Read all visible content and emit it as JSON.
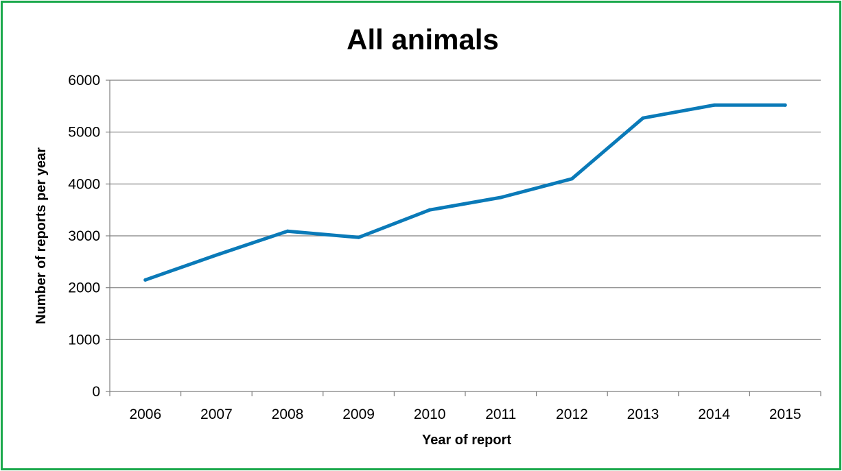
{
  "colors": {
    "border": "#1aa84b",
    "line": "#0a7ab8",
    "gridline": "#7f7f7f",
    "axis": "#7f7f7f"
  },
  "chart_data": {
    "type": "line",
    "title": "All animals",
    "xlabel": "Year of report",
    "ylabel": "Number of reports per year",
    "categories": [
      "2006",
      "2007",
      "2008",
      "2009",
      "2010",
      "2011",
      "2012",
      "2013",
      "2014",
      "2015"
    ],
    "series": [
      {
        "values": [
          2150,
          2630,
          3090,
          2970,
          3500,
          3740,
          4100,
          5270,
          5520,
          5520
        ]
      }
    ],
    "ylim": [
      0,
      6000
    ],
    "yticks": [
      0,
      1000,
      2000,
      3000,
      4000,
      5000,
      6000
    ],
    "grid": "horizontal",
    "legend": "none"
  }
}
